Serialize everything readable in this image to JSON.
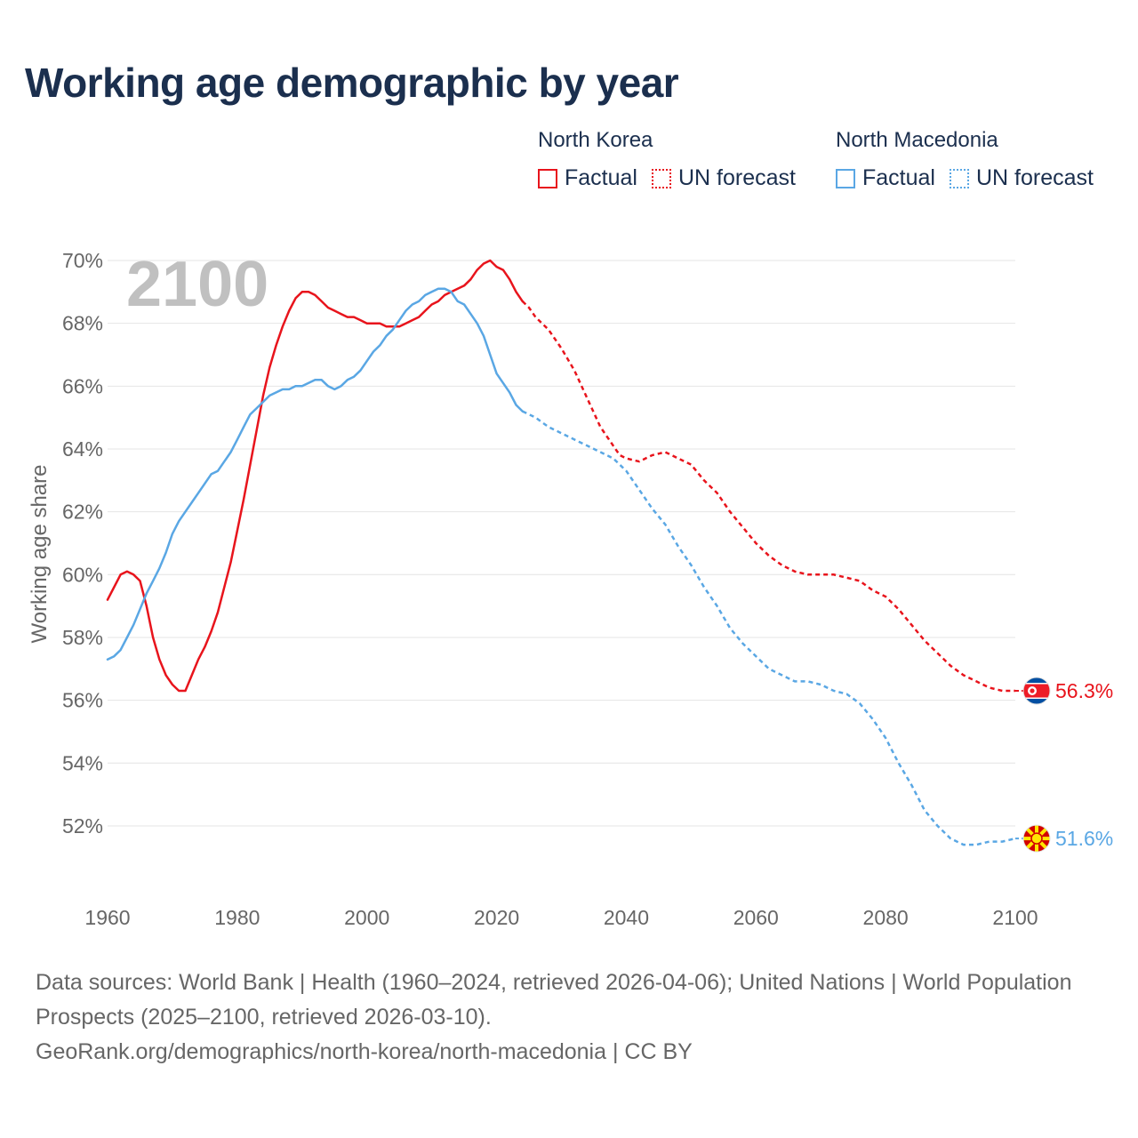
{
  "title": "Working age demographic by year",
  "year_badge": "2100",
  "legend": [
    {
      "country": "North Korea",
      "color": "#e8141c",
      "factual_label": "Factual",
      "forecast_label": "UN forecast"
    },
    {
      "country": "North Macedonia",
      "color": "#5aa7e4",
      "factual_label": "Factual",
      "forecast_label": "UN forecast"
    }
  ],
  "end_labels": [
    {
      "country": "North Korea",
      "text": "56.3%",
      "flag": "north-korea-flag"
    },
    {
      "country": "North Macedonia",
      "text": "51.6%",
      "flag": "north-macedonia-flag"
    }
  ],
  "chart_data": {
    "type": "line",
    "title": "Working age demographic by year",
    "xlabel": "",
    "ylabel": "Working age share",
    "xlim": [
      1960,
      2100
    ],
    "ylim": [
      50,
      70
    ],
    "x_ticks": [
      1960,
      1980,
      2000,
      2020,
      2040,
      2060,
      2080,
      2100
    ],
    "y_ticks": [
      52,
      54,
      56,
      58,
      60,
      62,
      64,
      66,
      68,
      70
    ],
    "y_tick_labels": [
      "52%",
      "54%",
      "56%",
      "58%",
      "60%",
      "62%",
      "64%",
      "66%",
      "68%",
      "70%"
    ],
    "grid": true,
    "factual_until": 2024,
    "series": [
      {
        "name": "North Korea",
        "color": "#e8141c",
        "points": [
          [
            1960,
            59.2
          ],
          [
            1962,
            60.0
          ],
          [
            1963,
            60.1
          ],
          [
            1964,
            60.0
          ],
          [
            1965,
            59.8
          ],
          [
            1966,
            59.0
          ],
          [
            1967,
            58.0
          ],
          [
            1968,
            57.3
          ],
          [
            1969,
            56.8
          ],
          [
            1970,
            56.5
          ],
          [
            1971,
            56.3
          ],
          [
            1972,
            56.3
          ],
          [
            1973,
            56.8
          ],
          [
            1974,
            57.3
          ],
          [
            1975,
            57.7
          ],
          [
            1976,
            58.2
          ],
          [
            1977,
            58.8
          ],
          [
            1978,
            59.6
          ],
          [
            1979,
            60.4
          ],
          [
            1980,
            61.4
          ],
          [
            1981,
            62.4
          ],
          [
            1982,
            63.5
          ],
          [
            1983,
            64.6
          ],
          [
            1984,
            65.7
          ],
          [
            1985,
            66.6
          ],
          [
            1986,
            67.3
          ],
          [
            1987,
            67.9
          ],
          [
            1988,
            68.4
          ],
          [
            1989,
            68.8
          ],
          [
            1990,
            69.0
          ],
          [
            1991,
            69.0
          ],
          [
            1992,
            68.9
          ],
          [
            1993,
            68.7
          ],
          [
            1994,
            68.5
          ],
          [
            1995,
            68.4
          ],
          [
            1996,
            68.3
          ],
          [
            1997,
            68.2
          ],
          [
            1998,
            68.2
          ],
          [
            1999,
            68.1
          ],
          [
            2000,
            68.0
          ],
          [
            2001,
            68.0
          ],
          [
            2002,
            68.0
          ],
          [
            2003,
            67.9
          ],
          [
            2004,
            67.9
          ],
          [
            2005,
            67.9
          ],
          [
            2006,
            68.0
          ],
          [
            2007,
            68.1
          ],
          [
            2008,
            68.2
          ],
          [
            2009,
            68.4
          ],
          [
            2010,
            68.6
          ],
          [
            2011,
            68.7
          ],
          [
            2012,
            68.9
          ],
          [
            2013,
            69.0
          ],
          [
            2014,
            69.1
          ],
          [
            2015,
            69.2
          ],
          [
            2016,
            69.4
          ],
          [
            2017,
            69.7
          ],
          [
            2018,
            69.9
          ],
          [
            2019,
            70.0
          ],
          [
            2020,
            69.8
          ],
          [
            2021,
            69.7
          ],
          [
            2022,
            69.4
          ],
          [
            2023,
            69.0
          ],
          [
            2024,
            68.7
          ],
          [
            2025,
            68.5
          ],
          [
            2026,
            68.2
          ],
          [
            2028,
            67.8
          ],
          [
            2030,
            67.2
          ],
          [
            2032,
            66.5
          ],
          [
            2034,
            65.6
          ],
          [
            2036,
            64.7
          ],
          [
            2038,
            64.1
          ],
          [
            2039,
            63.8
          ],
          [
            2040,
            63.7
          ],
          [
            2042,
            63.6
          ],
          [
            2044,
            63.8
          ],
          [
            2046,
            63.9
          ],
          [
            2048,
            63.7
          ],
          [
            2050,
            63.5
          ],
          [
            2052,
            63.0
          ],
          [
            2054,
            62.6
          ],
          [
            2056,
            62.0
          ],
          [
            2058,
            61.5
          ],
          [
            2060,
            61.0
          ],
          [
            2062,
            60.6
          ],
          [
            2064,
            60.3
          ],
          [
            2066,
            60.1
          ],
          [
            2068,
            60.0
          ],
          [
            2070,
            60.0
          ],
          [
            2072,
            60.0
          ],
          [
            2074,
            59.9
          ],
          [
            2076,
            59.8
          ],
          [
            2078,
            59.5
          ],
          [
            2080,
            59.3
          ],
          [
            2082,
            58.9
          ],
          [
            2084,
            58.4
          ],
          [
            2086,
            57.9
          ],
          [
            2088,
            57.5
          ],
          [
            2090,
            57.1
          ],
          [
            2092,
            56.8
          ],
          [
            2094,
            56.6
          ],
          [
            2096,
            56.4
          ],
          [
            2098,
            56.3
          ],
          [
            2100,
            56.3
          ]
        ]
      },
      {
        "name": "North Macedonia",
        "color": "#5aa7e4",
        "points": [
          [
            1960,
            57.3
          ],
          [
            1961,
            57.4
          ],
          [
            1962,
            57.6
          ],
          [
            1963,
            58.0
          ],
          [
            1964,
            58.4
          ],
          [
            1965,
            58.9
          ],
          [
            1966,
            59.4
          ],
          [
            1967,
            59.8
          ],
          [
            1968,
            60.2
          ],
          [
            1969,
            60.7
          ],
          [
            1970,
            61.3
          ],
          [
            1971,
            61.7
          ],
          [
            1972,
            62.0
          ],
          [
            1973,
            62.3
          ],
          [
            1974,
            62.6
          ],
          [
            1975,
            62.9
          ],
          [
            1976,
            63.2
          ],
          [
            1977,
            63.3
          ],
          [
            1978,
            63.6
          ],
          [
            1979,
            63.9
          ],
          [
            1980,
            64.3
          ],
          [
            1981,
            64.7
          ],
          [
            1982,
            65.1
          ],
          [
            1983,
            65.3
          ],
          [
            1984,
            65.5
          ],
          [
            1985,
            65.7
          ],
          [
            1986,
            65.8
          ],
          [
            1987,
            65.9
          ],
          [
            1988,
            65.9
          ],
          [
            1989,
            66.0
          ],
          [
            1990,
            66.0
          ],
          [
            1991,
            66.1
          ],
          [
            1992,
            66.2
          ],
          [
            1993,
            66.2
          ],
          [
            1994,
            66.0
          ],
          [
            1995,
            65.9
          ],
          [
            1996,
            66.0
          ],
          [
            1997,
            66.2
          ],
          [
            1998,
            66.3
          ],
          [
            1999,
            66.5
          ],
          [
            2000,
            66.8
          ],
          [
            2001,
            67.1
          ],
          [
            2002,
            67.3
          ],
          [
            2003,
            67.6
          ],
          [
            2004,
            67.8
          ],
          [
            2005,
            68.1
          ],
          [
            2006,
            68.4
          ],
          [
            2007,
            68.6
          ],
          [
            2008,
            68.7
          ],
          [
            2009,
            68.9
          ],
          [
            2010,
            69.0
          ],
          [
            2011,
            69.1
          ],
          [
            2012,
            69.1
          ],
          [
            2013,
            69.0
          ],
          [
            2014,
            68.7
          ],
          [
            2015,
            68.6
          ],
          [
            2016,
            68.3
          ],
          [
            2017,
            68.0
          ],
          [
            2018,
            67.6
          ],
          [
            2019,
            67.0
          ],
          [
            2020,
            66.4
          ],
          [
            2021,
            66.1
          ],
          [
            2022,
            65.8
          ],
          [
            2023,
            65.4
          ],
          [
            2024,
            65.2
          ],
          [
            2025,
            65.1
          ],
          [
            2026,
            65.0
          ],
          [
            2028,
            64.7
          ],
          [
            2030,
            64.5
          ],
          [
            2032,
            64.3
          ],
          [
            2034,
            64.1
          ],
          [
            2036,
            63.9
          ],
          [
            2038,
            63.7
          ],
          [
            2040,
            63.3
          ],
          [
            2042,
            62.7
          ],
          [
            2044,
            62.1
          ],
          [
            2046,
            61.6
          ],
          [
            2048,
            60.9
          ],
          [
            2050,
            60.3
          ],
          [
            2052,
            59.6
          ],
          [
            2054,
            59.0
          ],
          [
            2056,
            58.3
          ],
          [
            2058,
            57.8
          ],
          [
            2060,
            57.4
          ],
          [
            2062,
            57.0
          ],
          [
            2064,
            56.8
          ],
          [
            2066,
            56.6
          ],
          [
            2068,
            56.6
          ],
          [
            2070,
            56.5
          ],
          [
            2072,
            56.3
          ],
          [
            2074,
            56.2
          ],
          [
            2076,
            55.9
          ],
          [
            2078,
            55.4
          ],
          [
            2080,
            54.8
          ],
          [
            2082,
            54.0
          ],
          [
            2084,
            53.3
          ],
          [
            2086,
            52.5
          ],
          [
            2088,
            52.0
          ],
          [
            2090,
            51.6
          ],
          [
            2092,
            51.4
          ],
          [
            2094,
            51.4
          ],
          [
            2096,
            51.5
          ],
          [
            2098,
            51.5
          ],
          [
            2100,
            51.6
          ]
        ]
      }
    ]
  },
  "footer": {
    "line1": "Data sources: World Bank | Health (1960–2024, retrieved 2026-04-06); United Nations | World Population Prospects (2025–2100, retrieved 2026-03-10).",
    "line2": "GeoRank.org/demographics/north-korea/north-macedonia | CC BY"
  }
}
